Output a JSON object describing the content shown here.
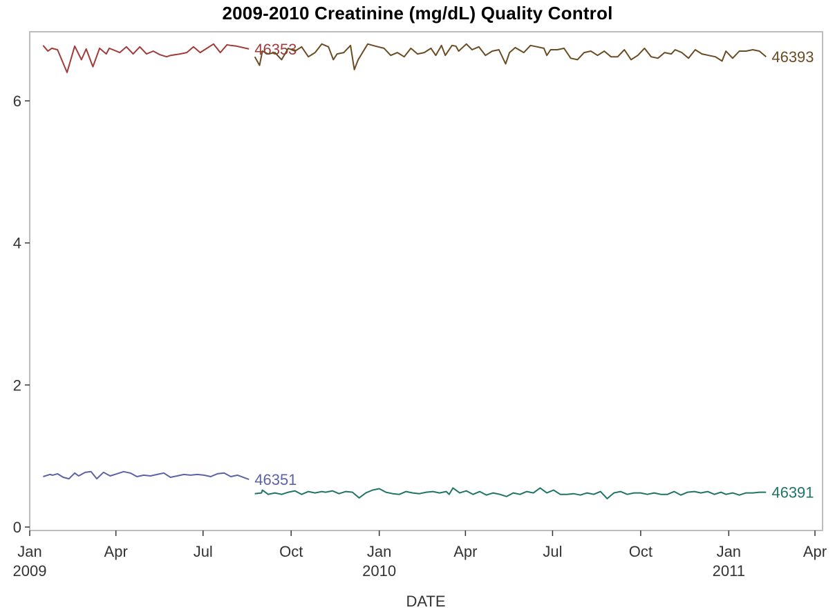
{
  "chart_data": {
    "type": "line",
    "title": "2009-2010 Creatinine (mg/dL) Quality Control",
    "xlabel": "DATE",
    "ylabel": "",
    "x_range": [
      "2009-01-01",
      "2011-04-01"
    ],
    "ylim": [
      0,
      6.85
    ],
    "y_ticks": [
      0,
      2,
      4,
      6
    ],
    "x_ticks": [
      {
        "date": "2009-01-01",
        "label": "Jan",
        "year": "2009"
      },
      {
        "date": "2009-04-01",
        "label": "Apr",
        "year": ""
      },
      {
        "date": "2009-07-01",
        "label": "Jul",
        "year": ""
      },
      {
        "date": "2009-10-01",
        "label": "Oct",
        "year": ""
      },
      {
        "date": "2010-01-01",
        "label": "Jan",
        "year": "2010"
      },
      {
        "date": "2010-04-01",
        "label": "Apr",
        "year": ""
      },
      {
        "date": "2010-07-01",
        "label": "Jul",
        "year": ""
      },
      {
        "date": "2010-10-01",
        "label": "Oct",
        "year": ""
      },
      {
        "date": "2011-01-01",
        "label": "Jan",
        "year": "2011"
      },
      {
        "date": "2011-04-01",
        "label": "Apr",
        "year": ""
      }
    ],
    "grid": false,
    "legend": "inline-end-labels",
    "series": [
      {
        "name": "46353",
        "color": "#A23A3A",
        "x": [
          "2009-01-15",
          "2009-01-20",
          "2009-01-24",
          "2009-01-30",
          "2009-02-09",
          "2009-02-17",
          "2009-02-24",
          "2009-03-01",
          "2009-03-08",
          "2009-03-15",
          "2009-03-22",
          "2009-03-25",
          "2009-03-29",
          "2009-04-05",
          "2009-04-12",
          "2009-04-19",
          "2009-04-26",
          "2009-05-03",
          "2009-05-10",
          "2009-05-17",
          "2009-05-24",
          "2009-05-28",
          "2009-06-07",
          "2009-06-14",
          "2009-06-21",
          "2009-06-28",
          "2009-07-05",
          "2009-07-12",
          "2009-07-19",
          "2009-07-26",
          "2009-07-30",
          "2009-08-05",
          "2009-08-18"
        ],
        "values": [
          6.78,
          6.7,
          6.74,
          6.72,
          6.4,
          6.77,
          6.58,
          6.73,
          6.48,
          6.74,
          6.66,
          6.74,
          6.72,
          6.68,
          6.76,
          6.66,
          6.76,
          6.66,
          6.7,
          6.65,
          6.62,
          6.64,
          6.66,
          6.68,
          6.76,
          6.68,
          6.74,
          6.8,
          6.68,
          6.79,
          6.78,
          6.77,
          6.73
        ]
      },
      {
        "name": "46393",
        "color": "#6B4B22",
        "x": [
          "2009-08-24",
          "2009-08-29",
          "2009-09-01",
          "2009-09-07",
          "2009-09-14",
          "2009-09-21",
          "2009-09-28",
          "2009-10-05",
          "2009-10-12",
          "2009-10-19",
          "2009-10-26",
          "2009-11-02",
          "2009-11-09",
          "2009-11-14",
          "2009-11-18",
          "2009-11-25",
          "2009-12-02",
          "2009-12-06",
          "2009-12-10",
          "2009-12-20",
          "2009-12-28",
          "2010-01-06",
          "2010-01-13",
          "2010-01-20",
          "2010-01-27",
          "2010-02-03",
          "2010-02-10",
          "2010-02-17",
          "2010-02-24",
          "2010-03-01",
          "2010-03-07",
          "2010-03-11",
          "2010-03-18",
          "2010-03-22",
          "2010-03-25",
          "2010-04-02",
          "2010-04-08",
          "2010-04-15",
          "2010-04-22",
          "2010-04-29",
          "2010-05-06",
          "2010-05-13",
          "2010-05-17",
          "2010-05-23",
          "2010-06-01",
          "2010-06-08",
          "2010-06-15",
          "2010-06-22",
          "2010-06-25",
          "2010-06-29",
          "2010-07-06",
          "2010-07-13",
          "2010-07-20",
          "2010-07-27",
          "2010-08-03",
          "2010-08-10",
          "2010-08-17",
          "2010-08-24",
          "2010-08-31",
          "2010-09-07",
          "2010-09-14",
          "2010-09-21",
          "2010-09-28",
          "2010-10-05",
          "2010-10-12",
          "2010-10-19",
          "2010-10-26",
          "2010-11-02",
          "2010-11-06",
          "2010-11-13",
          "2010-11-20",
          "2010-11-27",
          "2010-12-04",
          "2010-12-11",
          "2010-12-18",
          "2010-12-25",
          "2010-12-29",
          "2011-01-05",
          "2011-01-12",
          "2011-01-19",
          "2011-01-26",
          "2011-02-02",
          "2011-02-09"
        ],
        "values": [
          6.62,
          6.5,
          6.7,
          6.66,
          6.68,
          6.58,
          6.74,
          6.7,
          6.76,
          6.62,
          6.68,
          6.8,
          6.76,
          6.58,
          6.66,
          6.68,
          6.78,
          6.44,
          6.58,
          6.8,
          6.77,
          6.74,
          6.64,
          6.68,
          6.62,
          6.74,
          6.66,
          6.68,
          6.74,
          6.64,
          6.78,
          6.64,
          6.78,
          6.77,
          6.7,
          6.8,
          6.72,
          6.76,
          6.64,
          6.7,
          6.72,
          6.52,
          6.68,
          6.75,
          6.68,
          6.78,
          6.76,
          6.74,
          6.64,
          6.72,
          6.72,
          6.74,
          6.6,
          6.58,
          6.68,
          6.7,
          6.64,
          6.7,
          6.62,
          6.62,
          6.72,
          6.58,
          6.64,
          6.74,
          6.62,
          6.6,
          6.68,
          6.66,
          6.72,
          6.68,
          6.6,
          6.72,
          6.66,
          6.64,
          6.62,
          6.56,
          6.7,
          6.6,
          6.7,
          6.7,
          6.72,
          6.7,
          6.62
        ]
      },
      {
        "name": "46351",
        "color": "#5A63A6",
        "x": [
          "2009-01-15",
          "2009-01-22",
          "2009-01-25",
          "2009-01-30",
          "2009-02-05",
          "2009-02-11",
          "2009-02-17",
          "2009-02-21",
          "2009-02-28",
          "2009-03-06",
          "2009-03-12",
          "2009-03-19",
          "2009-03-26",
          "2009-04-02",
          "2009-04-09",
          "2009-04-16",
          "2009-04-23",
          "2009-04-30",
          "2009-05-07",
          "2009-05-14",
          "2009-05-21",
          "2009-05-28",
          "2009-06-04",
          "2009-06-11",
          "2009-06-18",
          "2009-06-25",
          "2009-07-02",
          "2009-07-09",
          "2009-07-16",
          "2009-07-23",
          "2009-07-30",
          "2009-08-06",
          "2009-08-18"
        ],
        "values": [
          0.71,
          0.74,
          0.73,
          0.75,
          0.7,
          0.68,
          0.76,
          0.72,
          0.77,
          0.78,
          0.68,
          0.77,
          0.72,
          0.75,
          0.78,
          0.76,
          0.71,
          0.73,
          0.72,
          0.74,
          0.76,
          0.7,
          0.72,
          0.74,
          0.73,
          0.74,
          0.73,
          0.71,
          0.75,
          0.76,
          0.71,
          0.73,
          0.67
        ]
      },
      {
        "name": "46391",
        "color": "#1F7466",
        "x": [
          "2009-08-24",
          "2009-08-31",
          "2009-09-01",
          "2009-09-07",
          "2009-09-14",
          "2009-09-21",
          "2009-09-28",
          "2009-10-05",
          "2009-10-12",
          "2009-10-19",
          "2009-10-26",
          "2009-11-02",
          "2009-11-06",
          "2009-11-13",
          "2009-11-20",
          "2009-11-27",
          "2009-12-04",
          "2009-12-11",
          "2009-12-18",
          "2009-12-25",
          "2010-01-01",
          "2010-01-08",
          "2010-01-15",
          "2010-01-22",
          "2010-01-29",
          "2010-02-05",
          "2010-02-12",
          "2010-02-19",
          "2010-02-26",
          "2010-03-05",
          "2010-03-12",
          "2010-03-15",
          "2010-03-19",
          "2010-03-26",
          "2010-04-02",
          "2010-04-09",
          "2010-04-16",
          "2010-04-23",
          "2010-04-30",
          "2010-05-07",
          "2010-05-14",
          "2010-05-21",
          "2010-05-28",
          "2010-06-04",
          "2010-06-11",
          "2010-06-18",
          "2010-06-25",
          "2010-07-02",
          "2010-07-09",
          "2010-07-16",
          "2010-07-23",
          "2010-07-30",
          "2010-08-06",
          "2010-08-13",
          "2010-08-20",
          "2010-08-27",
          "2010-09-03",
          "2010-09-10",
          "2010-09-17",
          "2010-09-24",
          "2010-10-01",
          "2010-10-08",
          "2010-10-15",
          "2010-10-22",
          "2010-10-29",
          "2010-11-05",
          "2010-11-12",
          "2010-11-19",
          "2010-11-26",
          "2010-12-03",
          "2010-12-10",
          "2010-12-17",
          "2010-12-24",
          "2010-12-29",
          "2011-01-05",
          "2011-01-12",
          "2011-01-19",
          "2011-01-26",
          "2011-02-02",
          "2011-02-09"
        ],
        "values": [
          0.47,
          0.48,
          0.52,
          0.46,
          0.48,
          0.46,
          0.49,
          0.51,
          0.46,
          0.5,
          0.48,
          0.5,
          0.49,
          0.51,
          0.47,
          0.5,
          0.49,
          0.41,
          0.48,
          0.52,
          0.54,
          0.49,
          0.47,
          0.46,
          0.5,
          0.48,
          0.47,
          0.49,
          0.5,
          0.48,
          0.5,
          0.46,
          0.55,
          0.48,
          0.51,
          0.46,
          0.5,
          0.45,
          0.48,
          0.46,
          0.43,
          0.48,
          0.46,
          0.5,
          0.48,
          0.55,
          0.48,
          0.52,
          0.46,
          0.46,
          0.47,
          0.45,
          0.48,
          0.46,
          0.5,
          0.4,
          0.48,
          0.5,
          0.46,
          0.48,
          0.48,
          0.46,
          0.48,
          0.46,
          0.46,
          0.5,
          0.45,
          0.49,
          0.5,
          0.48,
          0.5,
          0.46,
          0.49,
          0.46,
          0.48,
          0.45,
          0.48,
          0.48,
          0.49,
          0.49
        ]
      }
    ]
  }
}
